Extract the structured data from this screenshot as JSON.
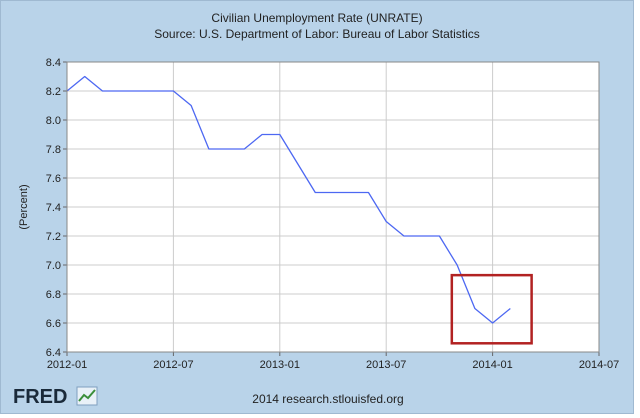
{
  "chart_data": {
    "type": "line",
    "title": "Civilian Unemployment Rate (UNRATE)",
    "subtitle": "Source: U.S. Department of Labor: Bureau of Labor Statistics",
    "ylabel": "(Percent)",
    "xlabel": "",
    "ylim": [
      6.4,
      8.4
    ],
    "yticks": [
      6.4,
      6.6,
      6.8,
      7.0,
      7.2,
      7.4,
      7.6,
      7.8,
      8.0,
      8.2,
      8.4
    ],
    "ytick_labels": [
      "6.4",
      "6.6",
      "6.8",
      "7.0",
      "7.2",
      "7.4",
      "7.6",
      "7.8",
      "8.0",
      "8.2",
      "8.4"
    ],
    "xlim_months": [
      0,
      30
    ],
    "xticks": [
      0,
      6,
      12,
      18,
      24,
      30
    ],
    "xtick_labels": [
      "2012-01",
      "2012-07",
      "2013-01",
      "2013-07",
      "2014-01",
      "2014-07"
    ],
    "grid": true,
    "series": [
      {
        "name": "UNRATE",
        "color": "#4d68f2",
        "x_months": [
          0,
          1,
          2,
          3,
          4,
          5,
          6,
          7,
          8,
          9,
          10,
          11,
          12,
          13,
          14,
          15,
          16,
          17,
          18,
          19,
          20,
          21,
          22,
          23,
          24,
          25
        ],
        "values": [
          8.2,
          8.3,
          8.2,
          8.2,
          8.2,
          8.2,
          8.2,
          8.1,
          7.8,
          7.8,
          7.8,
          7.9,
          7.9,
          7.7,
          7.5,
          7.5,
          7.5,
          7.5,
          7.3,
          7.2,
          7.2,
          7.2,
          7.0,
          6.7,
          6.6,
          6.7
        ]
      }
    ],
    "annotations": [
      {
        "type": "box",
        "color": "#b22222",
        "x_range_months": [
          21.7,
          26.2
        ],
        "y_range": [
          6.46,
          6.93
        ]
      }
    ]
  },
  "footer": {
    "logo_text": "FRED",
    "credit": "2014 research.stlouisfed.org"
  },
  "colors": {
    "background": "#b9d3e9",
    "plot_bg": "#ffffff",
    "grid": "#cccccc",
    "line": "#4d68f2",
    "highlight": "#b22222"
  }
}
